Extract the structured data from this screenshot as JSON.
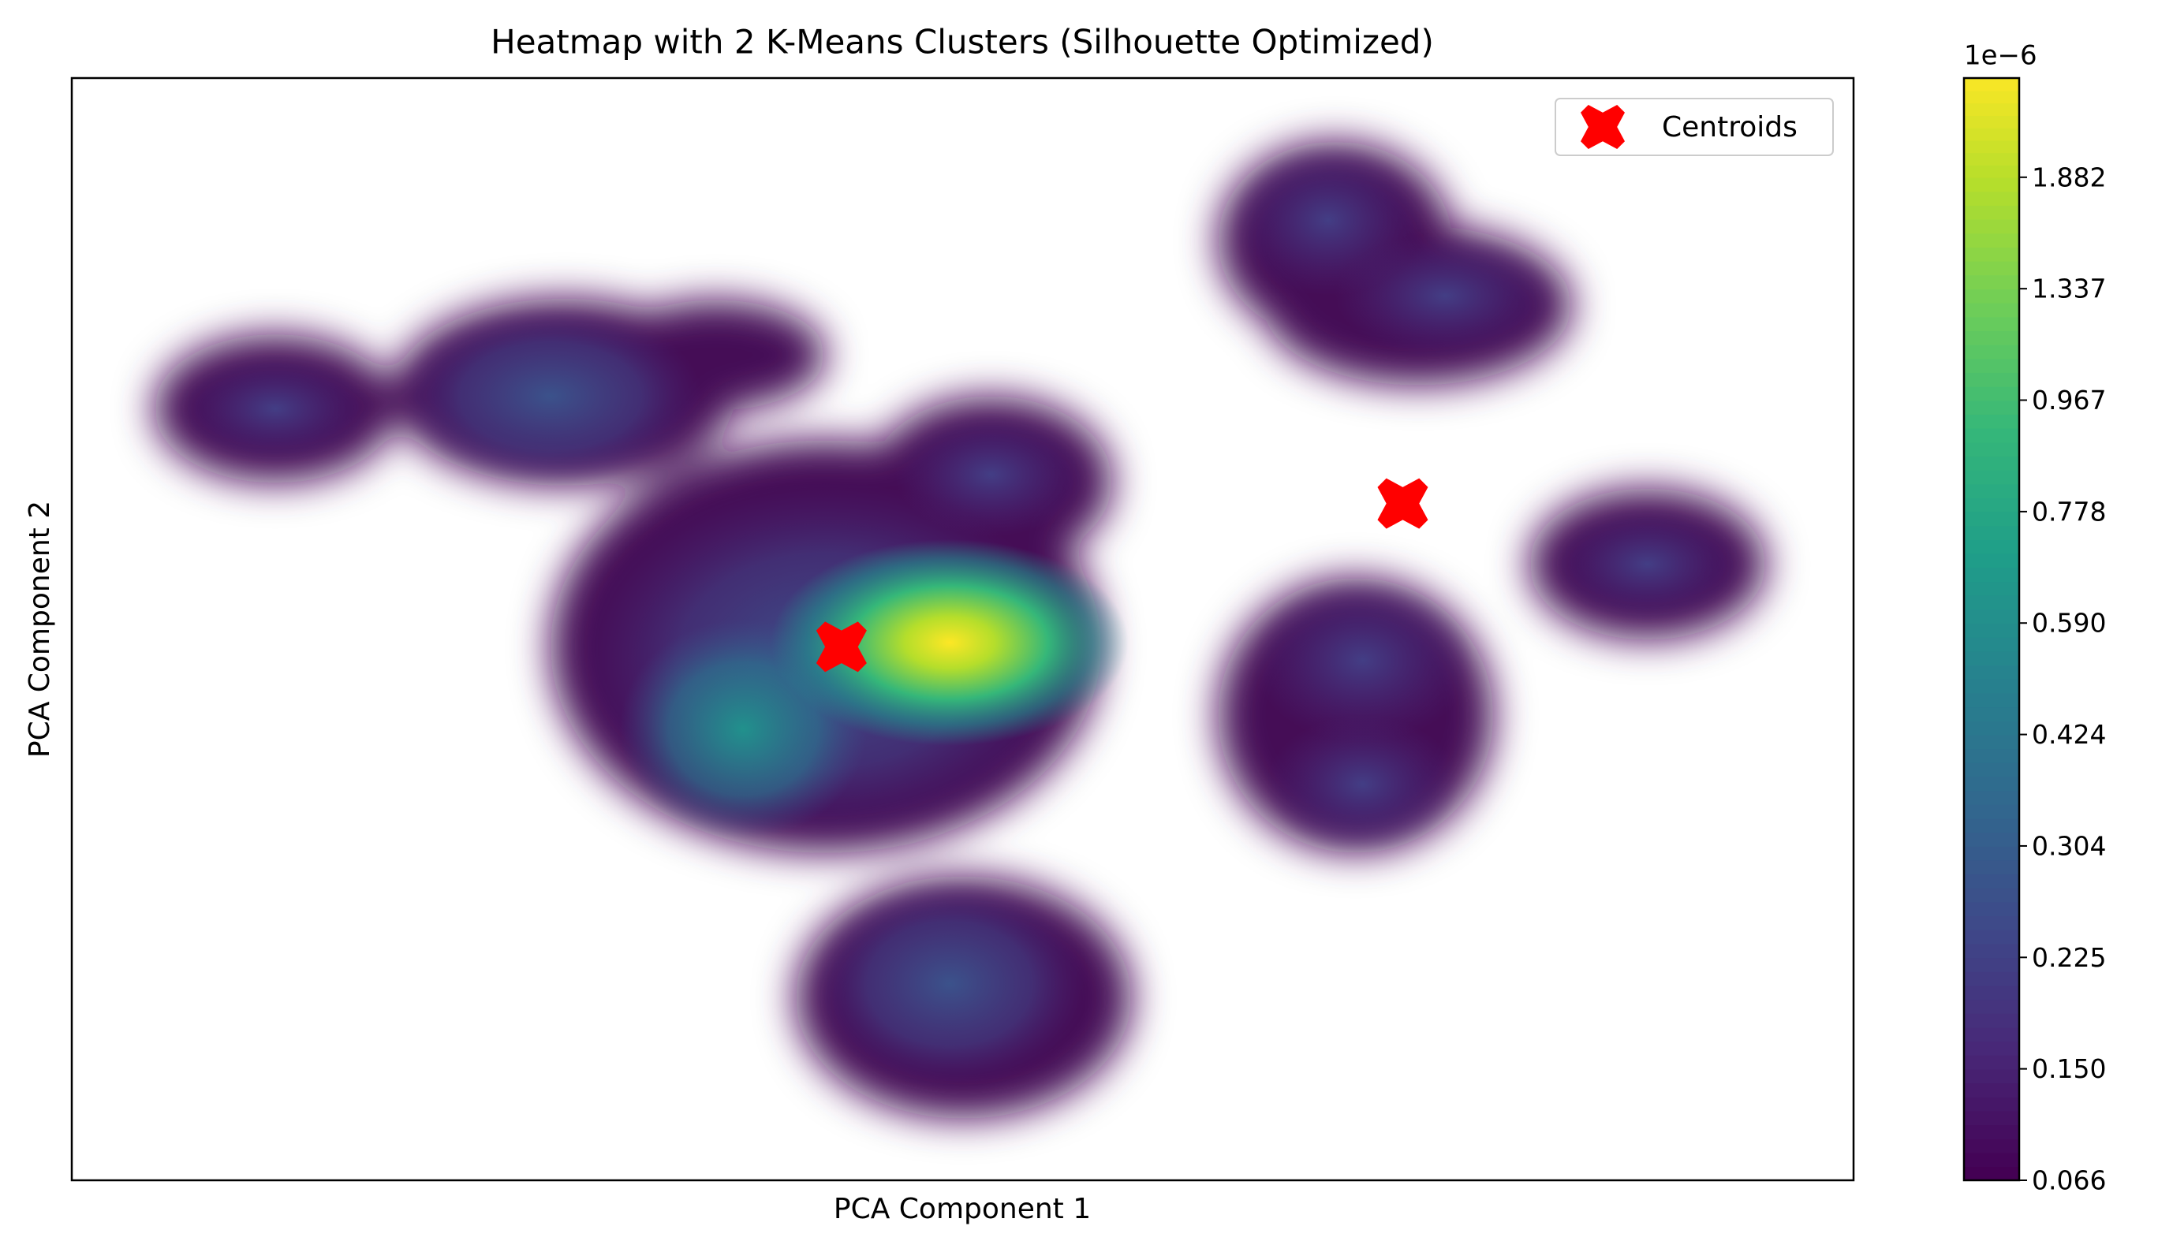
{
  "chart_data": {
    "type": "scatter",
    "title": "Heatmap with 2 K-Means Clusters (Silhouette Optimized)",
    "x_label": "PCA Component 1",
    "y_label": "PCA Component 2",
    "xlim": [
      0,
      1
    ],
    "ylim": [
      0,
      1
    ],
    "series": [
      {
        "name": "Centroids",
        "color": "#ff0000",
        "x": [
          0.432,
          0.747
        ],
        "values": [
          0.484,
          0.614
        ]
      }
    ],
    "legend": "upper right",
    "colorbar": {
      "colormap": "viridis",
      "offset_label": "1e−6",
      "ticks": [
        0.066,
        {
          "value": 0.15,
          "label": "0.150"
        },
        0.225,
        0.304,
        0.424,
        {
          "value": 0.59,
          "label": "0.590"
        },
        0.778,
        0.967,
        1.337,
        1.882
      ]
    }
  }
}
